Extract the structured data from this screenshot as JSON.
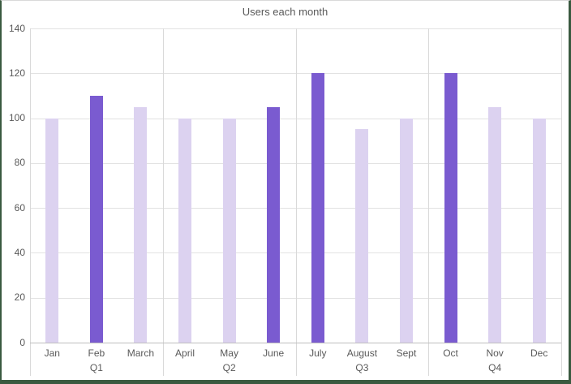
{
  "chart_data": {
    "type": "bar",
    "title": "Users each month",
    "categories": [
      "Jan",
      "Feb",
      "March",
      "April",
      "May",
      "June",
      "July",
      "August",
      "Sept",
      "Oct",
      "Nov",
      "Dec"
    ],
    "values": [
      100,
      110,
      105,
      100,
      100,
      105,
      120,
      95,
      100,
      120,
      105,
      100
    ],
    "emphasized": [
      false,
      true,
      false,
      false,
      false,
      true,
      true,
      false,
      false,
      true,
      false,
      false
    ],
    "group_labels": [
      "Q1",
      "Q2",
      "Q3",
      "Q4"
    ],
    "months_per_group": 3,
    "yticks": [
      0,
      20,
      40,
      60,
      80,
      100,
      120,
      140
    ],
    "ylim": [
      0,
      140
    ],
    "grid": true,
    "legend": false,
    "xlabel": "",
    "ylabel": "",
    "colors": {
      "bar_normal": "#DCD2F0",
      "bar_emphasis": "#7A5BD0",
      "gridline": "#E2E2E2",
      "axis_line": "#BFBFBF",
      "separator": "#D9D9D9",
      "text": "#595959",
      "frame_border_green": "#3A5A40",
      "frame_border_top": "#D9D9D9",
      "background": "#FFFFFF"
    }
  }
}
